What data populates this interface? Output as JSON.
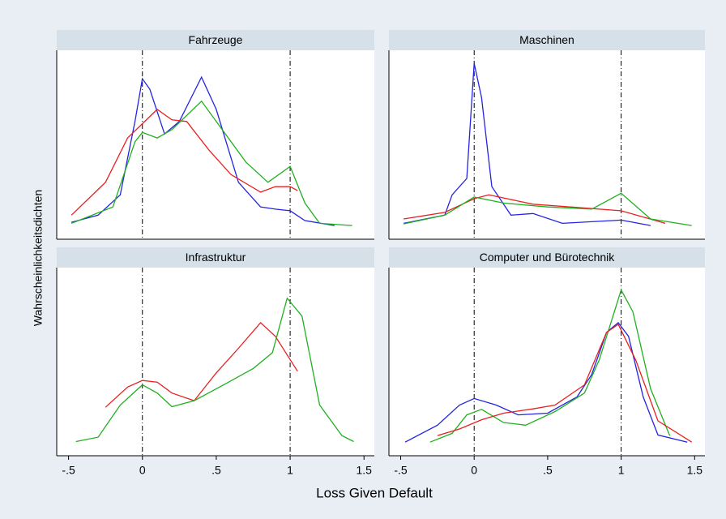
{
  "xlabel": "Loss Given Default",
  "ylabel": "Wahrscheinlichkeitsdichten",
  "chart_data": [
    {
      "type": "line",
      "title": "Fahrzeuge",
      "xlim": [
        -0.58,
        1.57
      ],
      "ylim": [
        -0.25,
        3.2
      ],
      "xlines": [
        0,
        1
      ],
      "series": [
        {
          "color": "#2424e0",
          "x": [
            -0.48,
            -0.3,
            -0.15,
            -0.05,
            0,
            0.05,
            0.15,
            0.25,
            0.4,
            0.5,
            0.65,
            0.8,
            0.9,
            1.0,
            1.1,
            1.3
          ],
          "values": [
            0.06,
            0.19,
            0.56,
            1.9,
            2.68,
            2.49,
            1.67,
            1.9,
            2.71,
            2.12,
            0.79,
            0.34,
            0.3,
            0.27,
            0.09,
            0
          ]
        },
        {
          "color": "#e82020",
          "x": [
            -0.48,
            -0.25,
            -0.1,
            0.1,
            0.2,
            0.3,
            0.45,
            0.6,
            0.8,
            0.9,
            1.0,
            1.05
          ],
          "values": [
            0.19,
            0.79,
            1.6,
            2.12,
            1.93,
            1.9,
            1.38,
            0.93,
            0.61,
            0.71,
            0.71,
            0.64
          ]
        },
        {
          "color": "#20b020",
          "x": [
            -0.48,
            -0.2,
            -0.05,
            0,
            0.1,
            0.2,
            0.4,
            0.5,
            0.7,
            0.85,
            1.0,
            1.1,
            1.2,
            1.42
          ],
          "values": [
            0.04,
            0.34,
            1.53,
            1.7,
            1.6,
            1.75,
            2.27,
            1.9,
            1.16,
            0.79,
            1.08,
            0.41,
            0.04,
            0
          ]
        }
      ]
    },
    {
      "type": "line",
      "title": "Maschinen",
      "xlim": [
        -0.58,
        1.57
      ],
      "ylim": [
        -0.25,
        3.2
      ],
      "xlines": [
        0,
        1
      ],
      "series": [
        {
          "color": "#2424e0",
          "x": [
            -0.48,
            -0.2,
            -0.15,
            -0.05,
            0,
            0.05,
            0.12,
            0.25,
            0.4,
            0.6,
            0.8,
            1.0,
            1.2
          ],
          "values": [
            0.04,
            0.19,
            0.56,
            0.86,
            2.96,
            2.34,
            0.71,
            0.19,
            0.22,
            0.04,
            0.07,
            0.1,
            0
          ]
        },
        {
          "color": "#e82020",
          "x": [
            -0.48,
            -0.2,
            0,
            0.1,
            0.4,
            0.7,
            1.0,
            1.3
          ],
          "values": [
            0.12,
            0.24,
            0.49,
            0.56,
            0.39,
            0.33,
            0.27,
            0.04
          ]
        },
        {
          "color": "#20b020",
          "x": [
            -0.48,
            -0.2,
            0,
            0.2,
            0.5,
            0.8,
            1.0,
            1.2,
            1.48
          ],
          "values": [
            0.03,
            0.19,
            0.52,
            0.41,
            0.34,
            0.3,
            0.59,
            0.12,
            0
          ]
        }
      ]
    },
    {
      "type": "line",
      "title": "Infrastruktur",
      "xlim": [
        -0.58,
        1.57
      ],
      "ylim": [
        -0.25,
        3.2
      ],
      "xlines": [
        0,
        1
      ],
      "xticks": [
        {
          "value": -0.5,
          "label": "-.5"
        },
        0,
        {
          "value": 0.5,
          "label": ".5"
        },
        1,
        1.5
      ],
      "series": [
        {
          "color": "#e82020",
          "x": [
            -0.25,
            -0.1,
            0,
            0.1,
            0.2,
            0.35,
            0.5,
            0.65,
            0.8,
            0.9,
            1.05
          ],
          "values": [
            0.64,
            1.01,
            1.13,
            1.1,
            0.9,
            0.76,
            1.27,
            1.72,
            2.19,
            1.94,
            1.3
          ]
        },
        {
          "color": "#20b020",
          "x": [
            -0.45,
            -0.3,
            -0.15,
            0,
            0.1,
            0.2,
            0.35,
            0.55,
            0.75,
            0.88,
            0.98,
            1.08,
            1.2,
            1.35,
            1.43
          ],
          "values": [
            0.01,
            0.09,
            0.68,
            1.05,
            0.9,
            0.65,
            0.76,
            1.05,
            1.35,
            1.64,
            2.64,
            2.31,
            0.68,
            0.12,
            0.01
          ]
        }
      ]
    },
    {
      "type": "line",
      "title": "Computer und Bürotechnik",
      "xlim": [
        -0.58,
        1.57
      ],
      "ylim": [
        -0.25,
        3.2
      ],
      "xlines": [
        0,
        1
      ],
      "xticks": [
        {
          "value": -0.5,
          "label": "-.5"
        },
        0,
        {
          "value": 0.5,
          "label": ".5"
        },
        1,
        1.5
      ],
      "series": [
        {
          "color": "#2424e0",
          "x": [
            -0.47,
            -0.25,
            -0.1,
            0,
            0.15,
            0.3,
            0.5,
            0.7,
            0.8,
            0.9,
            0.98,
            1.05,
            1.15,
            1.25,
            1.45
          ],
          "values": [
            0,
            0.31,
            0.68,
            0.8,
            0.68,
            0.5,
            0.53,
            0.83,
            1.24,
            2.01,
            2.19,
            1.94,
            0.83,
            0.13,
            0
          ]
        },
        {
          "color": "#20b020",
          "x": [
            -0.3,
            -0.15,
            -0.05,
            0.05,
            0.2,
            0.35,
            0.55,
            0.75,
            0.85,
            1.0,
            1.08,
            1.2,
            1.33
          ],
          "values": [
            0,
            0.16,
            0.5,
            0.6,
            0.36,
            0.31,
            0.56,
            0.9,
            1.5,
            2.79,
            2.39,
            0.98,
            0.12
          ]
        },
        {
          "color": "#e82020",
          "x": [
            -0.25,
            -0.1,
            0.05,
            0.2,
            0.4,
            0.55,
            0.75,
            0.9,
            0.98,
            1.1,
            1.25,
            1.48
          ],
          "values": [
            0.12,
            0.24,
            0.41,
            0.53,
            0.61,
            0.68,
            1.05,
            2.01,
            2.16,
            1.5,
            0.39,
            0
          ]
        }
      ]
    }
  ]
}
